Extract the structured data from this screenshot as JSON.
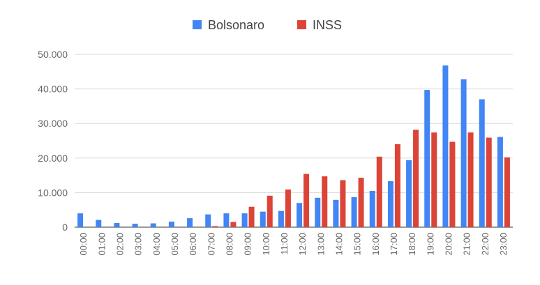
{
  "chart_data": {
    "type": "bar",
    "title": "",
    "xlabel": "",
    "ylabel": "",
    "categories": [
      "00:00",
      "01:00",
      "02:00",
      "03:00",
      "04:00",
      "05:00",
      "06:00",
      "07:00",
      "08:00",
      "09:00",
      "10:00",
      "11:00",
      "12:00",
      "13:00",
      "14:00",
      "15:00",
      "16:00",
      "17:00",
      "18:00",
      "19:00",
      "20:00",
      "21:00",
      "22:00",
      "23:00"
    ],
    "series": [
      {
        "name": "Bolsonaro",
        "color": "#4285f4",
        "values": [
          4000,
          2100,
          1200,
          1000,
          1100,
          1600,
          2600,
          3700,
          4000,
          4000,
          4500,
          4700,
          7000,
          8500,
          7900,
          8700,
          10500,
          13300,
          19400,
          39700,
          46800,
          42800,
          37000,
          26100
        ]
      },
      {
        "name": "INSS",
        "color": "#db4437",
        "values": [
          0,
          0,
          0,
          0,
          0,
          0,
          0,
          300,
          1500,
          5900,
          9100,
          10900,
          15400,
          14700,
          13600,
          14300,
          20400,
          24000,
          28200,
          27400,
          24700,
          27400,
          25900,
          20200
        ]
      }
    ],
    "ylim": [
      0,
      50000
    ],
    "yticks": [
      "0",
      "10.000",
      "20.000",
      "30.000",
      "40.000",
      "50.000"
    ],
    "ytick_values": [
      0,
      10000,
      20000,
      30000,
      40000,
      50000
    ],
    "grid": true,
    "legend_position": "top-center"
  }
}
